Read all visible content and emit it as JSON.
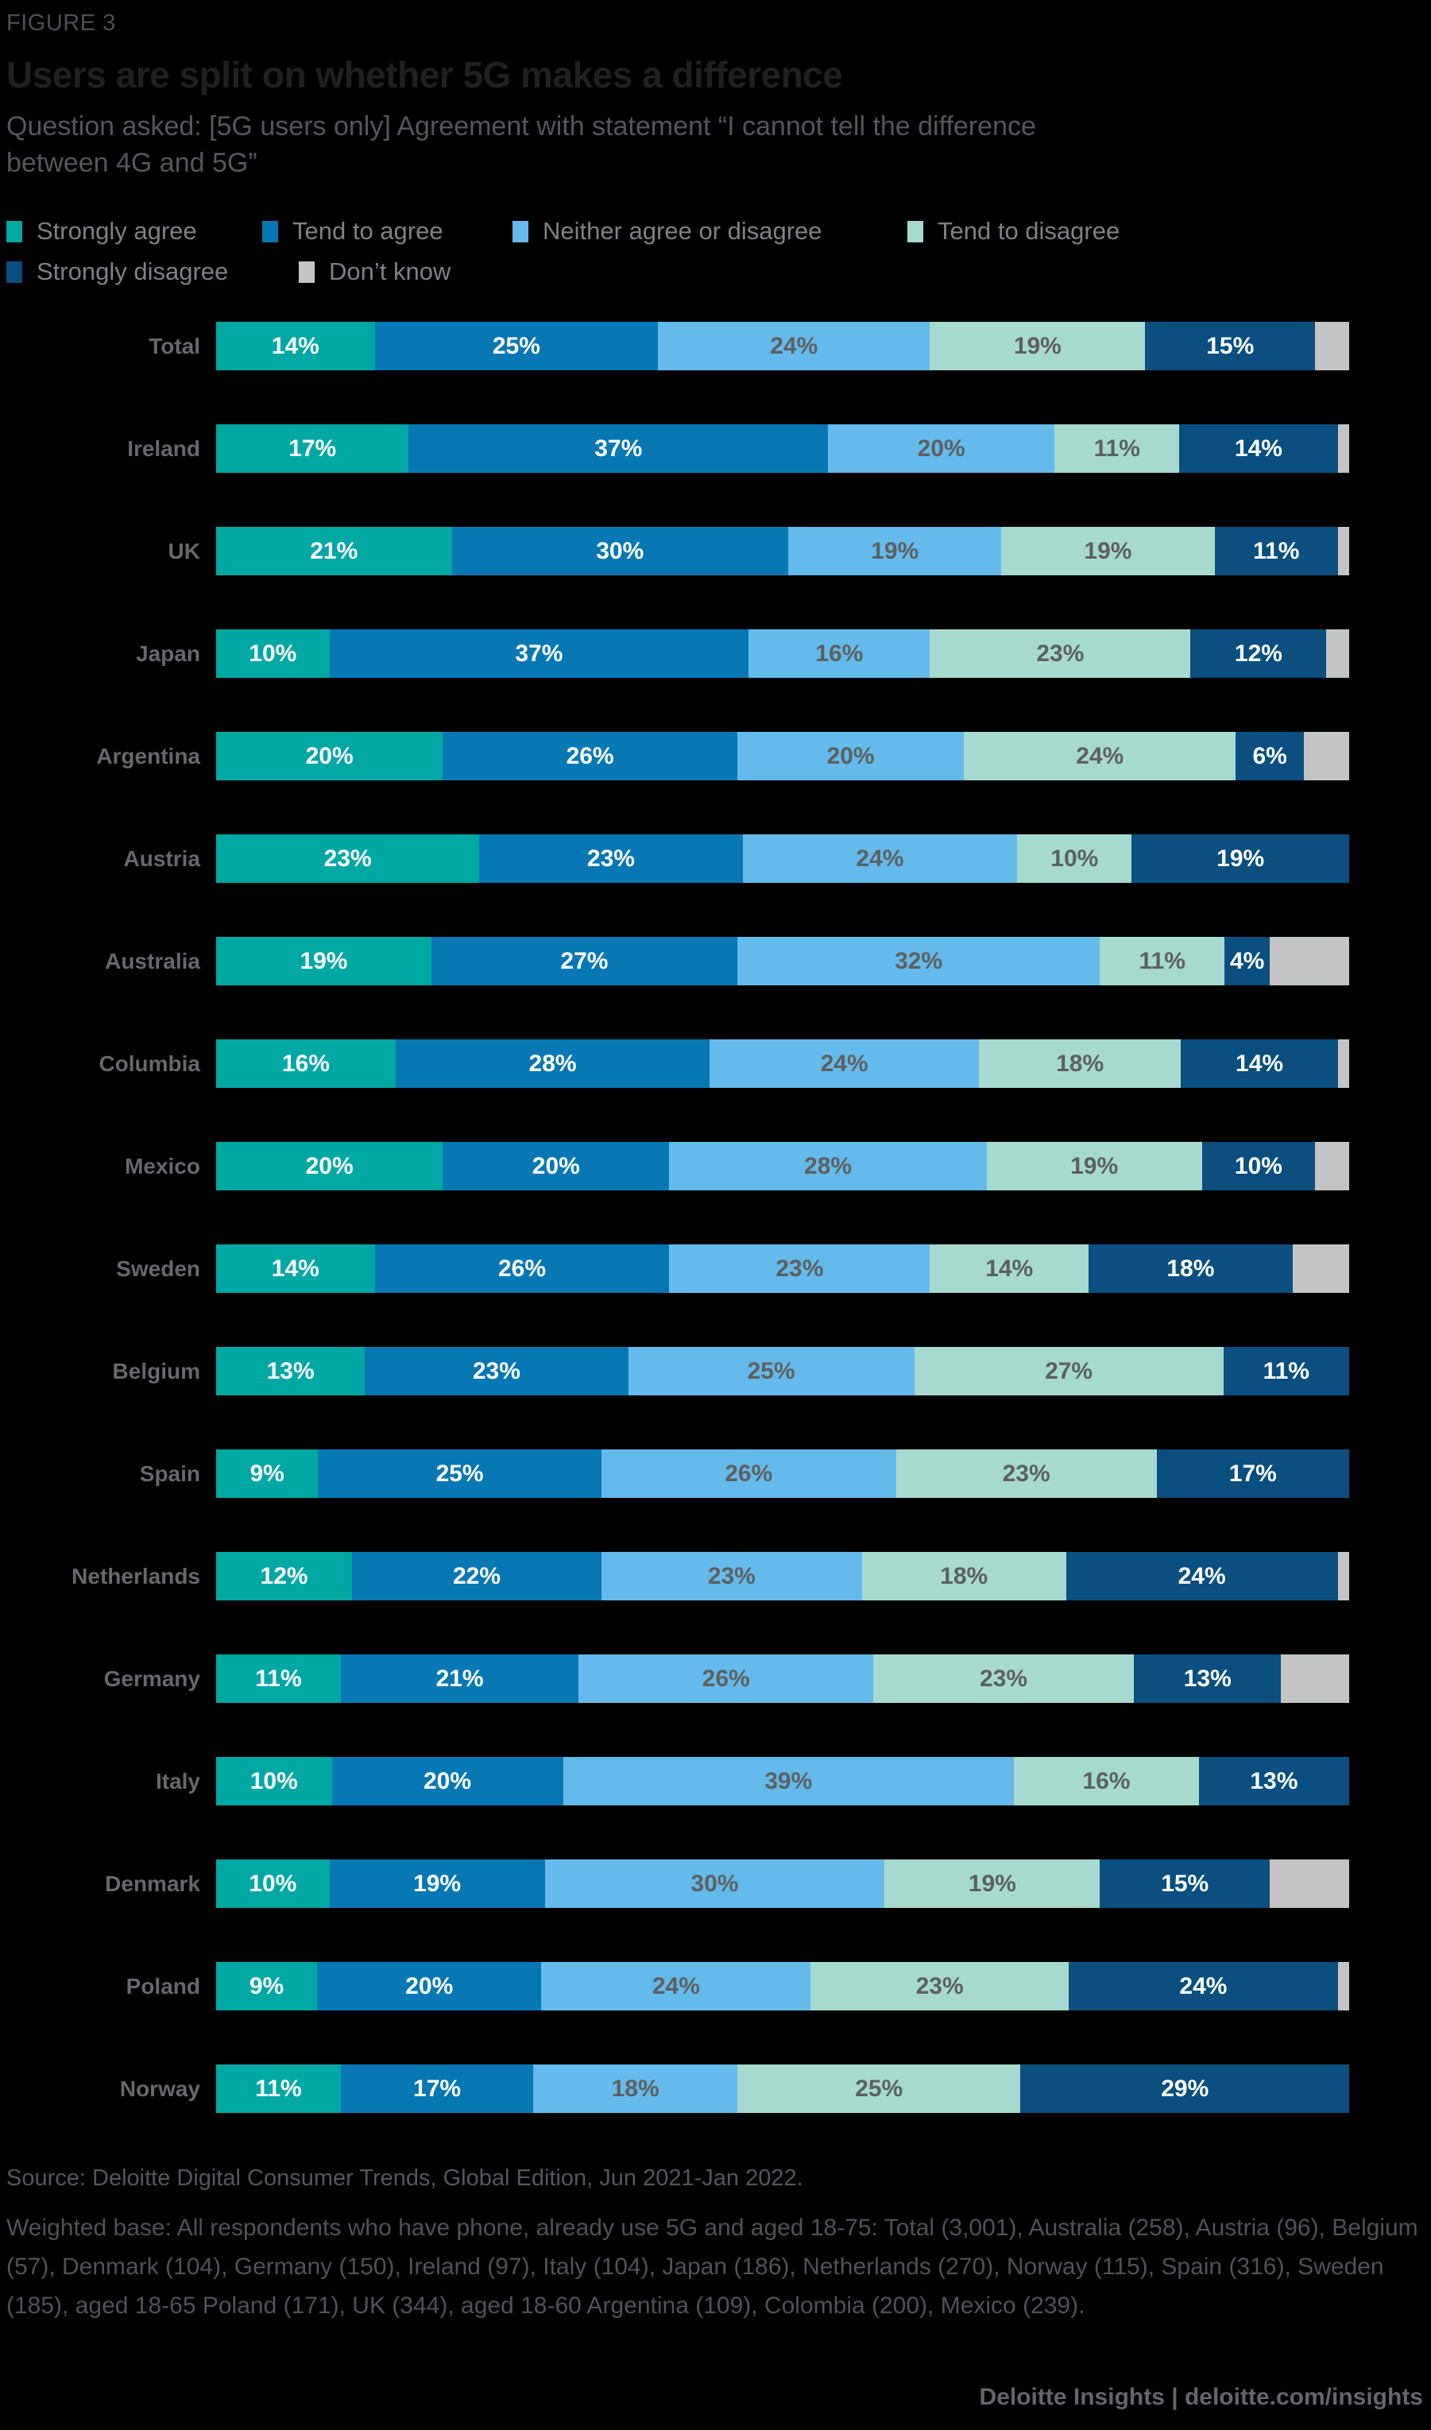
{
  "figure_label": "FIGURE 3",
  "title": "Users are split on whether 5G makes a difference",
  "subtitle": "Question asked: [5G users only] Agreement with statement “I cannot tell the difference between 4G and 5G”",
  "colors": {
    "background": "#000000",
    "strongly_agree": "#00A8A4",
    "tend_to_agree": "#0878B4",
    "neither": "#64BAEA",
    "tend_to_disagree": "#A7DACF",
    "strongly_disagree": "#0A4F80",
    "dont_know": "#C2C5C4",
    "label_on_dark": "#FFFFFF",
    "label_on_light": "#5D6062"
  },
  "legend": {
    "rows": [
      [
        {
          "label": "Strongly agree",
          "color_key": "strongly_agree"
        },
        {
          "label": "Tend to agree",
          "color_key": "tend_to_agree"
        },
        {
          "label": "Neither agree or disagree",
          "color_key": "neither"
        },
        {
          "label": "Tend to disagree",
          "color_key": "tend_to_disagree"
        }
      ],
      [
        {
          "label": "Strongly disagree",
          "color_key": "strongly_disagree"
        },
        {
          "label": "Don’t know",
          "color_key": "dont_know"
        }
      ]
    ]
  },
  "chart_data": {
    "type": "bar",
    "variant": "horizontal-stacked",
    "unit": "%",
    "xlim": [
      0,
      100
    ],
    "value_labels": "inside-center, shown for all series except Don’t know",
    "categories": [
      "Total",
      "Ireland",
      "UK",
      "Japan",
      "Argentina",
      "Austria",
      "Australia",
      "Columbia",
      "Mexico",
      "Sweden",
      "Belgium",
      "Spain",
      "Netherlands",
      "Germany",
      "Italy",
      "Denmark",
      "Poland",
      "Norway"
    ],
    "series": [
      {
        "name": "Strongly agree",
        "color_key": "strongly_agree",
        "text": "light",
        "show_labels": true,
        "values": [
          14,
          17,
          21,
          10,
          20,
          23,
          19,
          16,
          20,
          14,
          13,
          9,
          12,
          11,
          10,
          10,
          9,
          11
        ]
      },
      {
        "name": "Tend to agree",
        "color_key": "tend_to_agree",
        "text": "light",
        "show_labels": true,
        "values": [
          25,
          37,
          30,
          37,
          26,
          23,
          27,
          28,
          20,
          26,
          23,
          25,
          22,
          21,
          20,
          19,
          20,
          17
        ]
      },
      {
        "name": "Neither agree or disagree",
        "color_key": "neither",
        "text": "dark",
        "show_labels": true,
        "values": [
          24,
          20,
          19,
          16,
          20,
          24,
          32,
          24,
          28,
          23,
          25,
          26,
          23,
          26,
          39,
          30,
          24,
          18
        ]
      },
      {
        "name": "Tend to disagree",
        "color_key": "tend_to_disagree",
        "text": "dark",
        "show_labels": true,
        "values": [
          19,
          11,
          19,
          23,
          24,
          10,
          11,
          18,
          19,
          14,
          27,
          23,
          18,
          23,
          16,
          19,
          23,
          25
        ]
      },
      {
        "name": "Strongly disagree",
        "color_key": "strongly_disagree",
        "text": "light",
        "show_labels": true,
        "values": [
          15,
          14,
          11,
          12,
          6,
          19,
          4,
          14,
          10,
          18,
          11,
          17,
          24,
          13,
          13,
          15,
          24,
          29
        ]
      },
      {
        "name": "Don’t know",
        "color_key": "dont_know",
        "text": "dark",
        "show_labels": false,
        "values": [
          3,
          1,
          1,
          2,
          4,
          0,
          7,
          1,
          3,
          5,
          0,
          0,
          1,
          6,
          0,
          7,
          1,
          0
        ]
      }
    ]
  },
  "footer": {
    "source": "Source: Deloitte Digital Consumer Trends, Global Edition, Jun 2021-Jan 2022.",
    "weighted_base": "Weighted base: All respondents who have phone, already use 5G and aged 18-75: Total (3,001), Australia (258), Austria (96), Belgium (57), Denmark (104), Germany (150), Ireland (97), Italy (104), Japan (186), Netherlands (270), Norway (115), Spain (316), Sweden (185), aged 18-65 Poland (171), UK (344), aged 18-60 Argentina (109), Colombia (200), Mexico (239).",
    "branding": "Deloitte Insights | deloitte.com/insights"
  }
}
